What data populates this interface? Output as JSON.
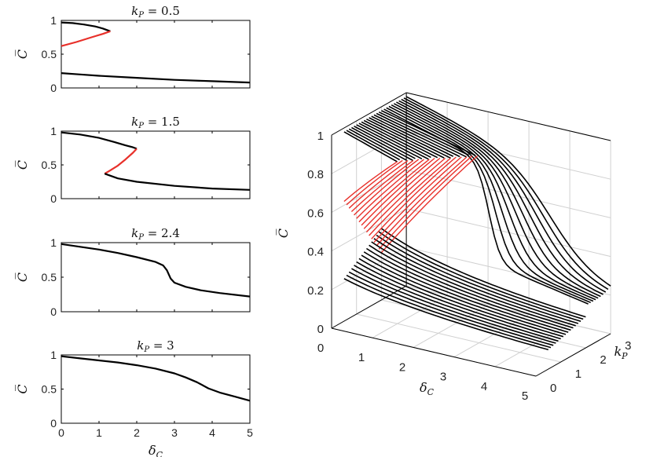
{
  "chart_data": [
    {
      "type": "line",
      "title_var": "k",
      "title_sub": "P",
      "title_eq": " = 0.5",
      "ylabel": "C̅",
      "xlabel": "",
      "xlim": [
        0,
        5
      ],
      "ylim": [
        0,
        1
      ],
      "yticks": [
        "0",
        "0.5",
        "1"
      ],
      "xticks": [],
      "series": [
        {
          "color": "#000000",
          "points": [
            [
              0,
              0.97
            ],
            [
              0.3,
              0.96
            ],
            [
              0.6,
              0.94
            ],
            [
              0.9,
              0.91
            ],
            [
              1.1,
              0.88
            ],
            [
              1.3,
              0.84
            ]
          ]
        },
        {
          "color": "#e8302a",
          "points": [
            [
              1.3,
              0.84
            ],
            [
              1.1,
              0.8
            ],
            [
              0.8,
              0.75
            ],
            [
              0.4,
              0.68
            ],
            [
              0,
              0.62
            ]
          ]
        },
        {
          "color": "#000000",
          "points": [
            [
              0,
              0.22
            ],
            [
              0.5,
              0.2
            ],
            [
              1,
              0.18
            ],
            [
              2,
              0.15
            ],
            [
              3,
              0.12
            ],
            [
              4,
              0.1
            ],
            [
              5,
              0.08
            ]
          ]
        }
      ]
    },
    {
      "type": "line",
      "title_var": "k",
      "title_sub": "P",
      "title_eq": " = 1.5",
      "ylabel": "C̅",
      "xlabel": "",
      "xlim": [
        0,
        5
      ],
      "ylim": [
        0,
        1
      ],
      "yticks": [
        "0",
        "0.5",
        "1"
      ],
      "xticks": [],
      "series": [
        {
          "color": "#000000",
          "points": [
            [
              0,
              0.98
            ],
            [
              0.5,
              0.95
            ],
            [
              1,
              0.9
            ],
            [
              1.4,
              0.84
            ],
            [
              1.7,
              0.79
            ],
            [
              1.9,
              0.76
            ],
            [
              2.0,
              0.74
            ]
          ]
        },
        {
          "color": "#e8302a",
          "points": [
            [
              2.0,
              0.74
            ],
            [
              1.9,
              0.68
            ],
            [
              1.7,
              0.58
            ],
            [
              1.5,
              0.49
            ],
            [
              1.3,
              0.42
            ],
            [
              1.15,
              0.37
            ]
          ]
        },
        {
          "color": "#000000",
          "points": [
            [
              1.15,
              0.37
            ],
            [
              1.5,
              0.3
            ],
            [
              2,
              0.25
            ],
            [
              3,
              0.19
            ],
            [
              4,
              0.15
            ],
            [
              5,
              0.13
            ]
          ]
        }
      ]
    },
    {
      "type": "line",
      "title_var": "k",
      "title_sub": "P",
      "title_eq": " = 2.4",
      "ylabel": "C̅",
      "xlabel": "",
      "xlim": [
        0,
        5
      ],
      "ylim": [
        0,
        1
      ],
      "yticks": [
        "0",
        "0.5",
        "1"
      ],
      "xticks": [],
      "series": [
        {
          "color": "#000000",
          "points": [
            [
              0,
              0.98
            ],
            [
              0.5,
              0.94
            ],
            [
              1,
              0.9
            ],
            [
              1.5,
              0.85
            ],
            [
              2,
              0.79
            ],
            [
              2.5,
              0.72
            ],
            [
              2.7,
              0.67
            ],
            [
              2.8,
              0.6
            ],
            [
              2.9,
              0.48
            ],
            [
              3.0,
              0.42
            ],
            [
              3.3,
              0.36
            ],
            [
              3.7,
              0.31
            ],
            [
              4.2,
              0.27
            ],
            [
              5,
              0.22
            ]
          ]
        }
      ]
    },
    {
      "type": "line",
      "title_var": "k",
      "title_sub": "P",
      "title_eq": " = 3",
      "ylabel": "C̅",
      "xlabel": "δ",
      "xlabel_sub": "C",
      "xlim": [
        0,
        5
      ],
      "ylim": [
        0,
        1
      ],
      "yticks": [
        "0",
        "0.5",
        "1"
      ],
      "xticks": [
        "0",
        "1",
        "2",
        "3",
        "4",
        "5"
      ],
      "series": [
        {
          "color": "#000000",
          "points": [
            [
              0,
              0.98
            ],
            [
              0.5,
              0.95
            ],
            [
              1,
              0.92
            ],
            [
              1.5,
              0.89
            ],
            [
              2,
              0.85
            ],
            [
              2.5,
              0.8
            ],
            [
              3,
              0.73
            ],
            [
              3.3,
              0.67
            ],
            [
              3.6,
              0.6
            ],
            [
              3.9,
              0.51
            ],
            [
              4.2,
              0.45
            ],
            [
              4.6,
              0.39
            ],
            [
              5,
              0.33
            ]
          ]
        }
      ]
    },
    {
      "type": "line",
      "dimension": "3d",
      "ylabel": "C̅",
      "xlabel": "δ",
      "xlabel_sub": "C",
      "zlabel": "k",
      "zlabel_sub": "P",
      "xlim": [
        0,
        5
      ],
      "zlim": [
        0,
        3
      ],
      "ylim": [
        0,
        1
      ],
      "xticks": [
        "0",
        "1",
        "2",
        "3",
        "4",
        "5"
      ],
      "kpticks": [
        "0",
        "1",
        "2",
        "3"
      ],
      "cticks": [
        "0",
        "0.2",
        "0.4",
        "0.6",
        "0.8",
        "1"
      ],
      "kp_values": [
        3.0,
        2.9,
        2.8,
        2.7,
        2.6,
        2.5,
        2.4,
        2.3,
        2.2,
        2.1,
        2.0,
        1.9,
        1.8,
        1.7,
        1.6,
        1.5,
        1.4,
        1.3,
        1.2,
        1.1,
        1.0,
        0.9,
        0.8,
        0.7,
        0.6,
        0.5
      ],
      "grid": true,
      "colors": {
        "stable": "#000000",
        "unstable": "#e8302a"
      }
    }
  ]
}
